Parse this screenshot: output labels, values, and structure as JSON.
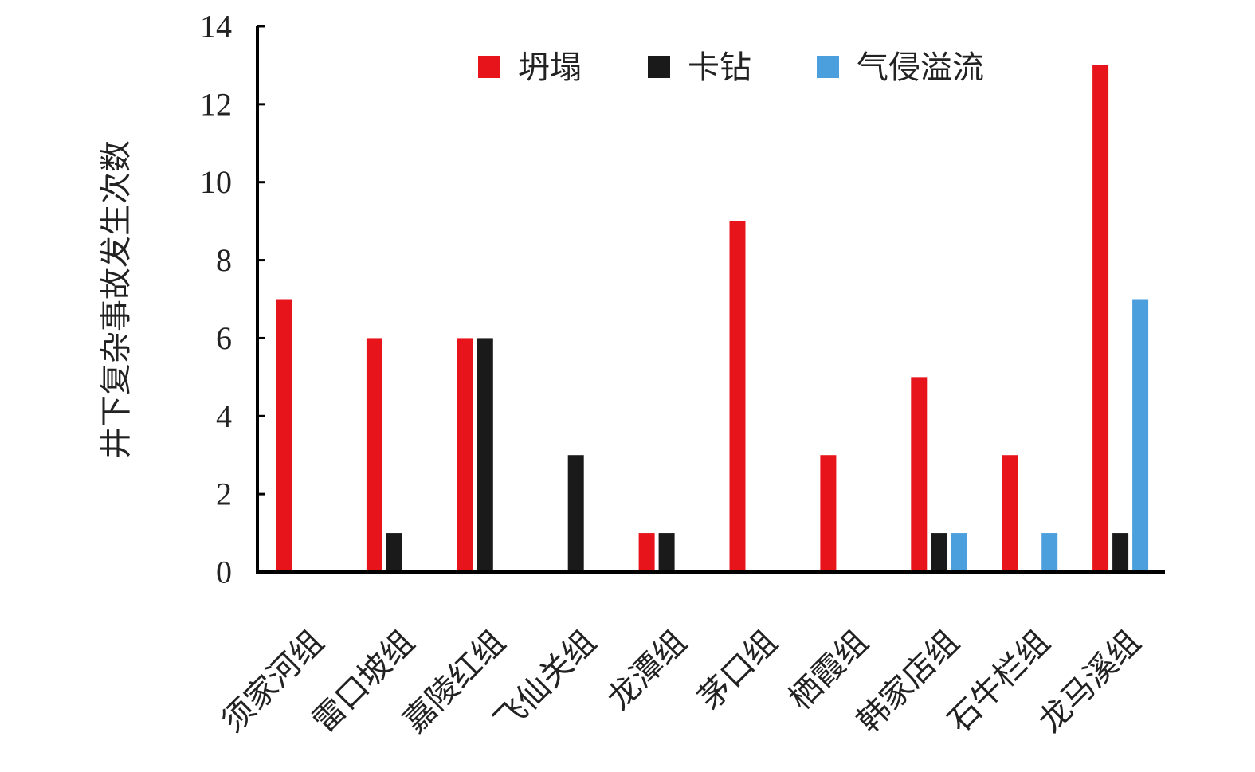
{
  "chart_data": {
    "type": "bar",
    "title": "",
    "xlabel": "",
    "ylabel": "井下复杂事故发生次数",
    "ylim": [
      0,
      14
    ],
    "yticks": [
      "0",
      "2",
      "4",
      "6",
      "8",
      "10",
      "12",
      "14"
    ],
    "grid": false,
    "legend_position": "top-right",
    "categories": [
      "须家河组",
      "雷口坡组",
      "嘉陵红组",
      "飞仙关组",
      "龙潭组",
      "茅口组",
      "栖霞组",
      "韩家店组",
      "石牛栏组",
      "龙马溪组"
    ],
    "series": [
      {
        "name": "坍塌",
        "color": "#e8141c",
        "values": [
          7,
          6,
          6,
          0,
          1,
          9,
          3,
          5,
          3,
          13
        ]
      },
      {
        "name": "卡钻",
        "color": "#1a1a1a",
        "values": [
          0,
          1,
          6,
          3,
          1,
          0,
          0,
          1,
          0,
          1
        ]
      },
      {
        "name": "气侵溢流",
        "color": "#4a9fdc",
        "values": [
          0,
          0,
          0,
          0,
          0,
          0,
          0,
          1,
          1,
          7
        ]
      }
    ]
  }
}
